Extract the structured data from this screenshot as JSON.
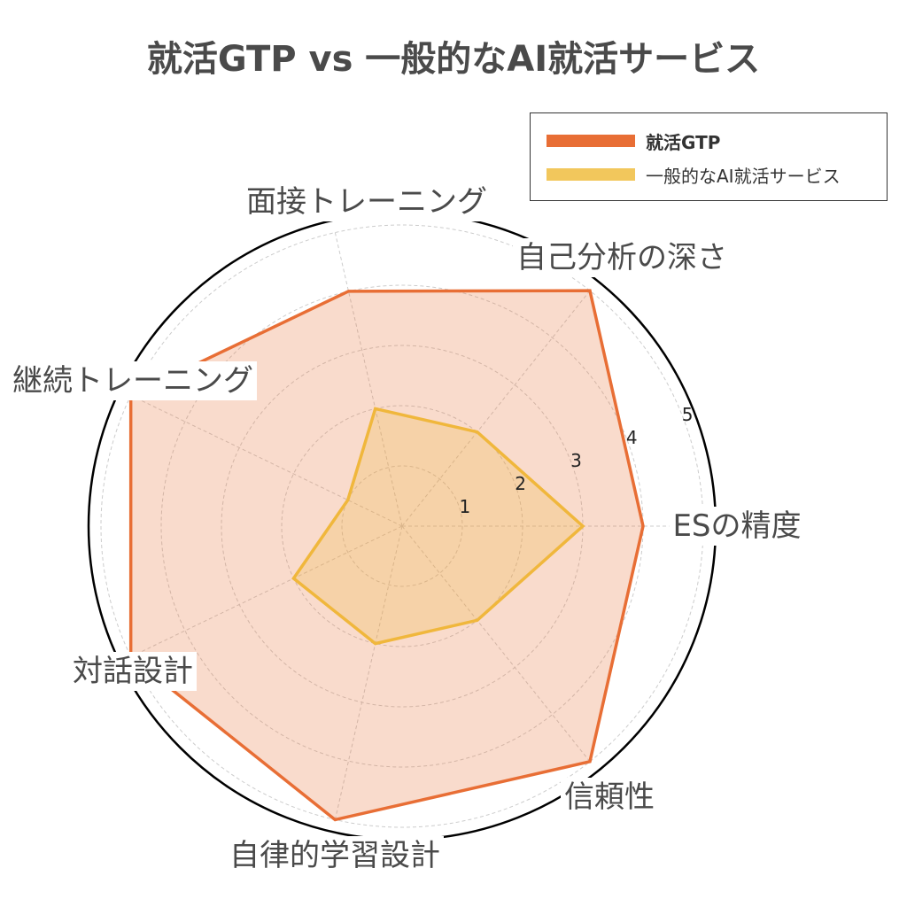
{
  "title": "就活GTP vs 一般的なAI就活サービス",
  "legend": {
    "position": "top-right",
    "items": [
      {
        "label": "就活GTP",
        "color": "#e86e35",
        "bold": true
      },
      {
        "label": "一般的なAI就活サービス",
        "color": "#f2c75c",
        "bold": false
      }
    ]
  },
  "chart_data": {
    "type": "radar",
    "categories": [
      "ESの精度",
      "自己分析の深さ",
      "面接トレーニング",
      "継続トレーニング",
      "対話設計",
      "自律的学習設計",
      "信頼性"
    ],
    "series": [
      {
        "name": "就活GTP",
        "values": [
          4,
          5,
          4,
          5,
          5,
          5,
          5
        ],
        "line_color": "#e86e35",
        "fill_color": "#e86e35"
      },
      {
        "name": "一般的なAI就活サービス",
        "values": [
          3,
          2,
          2,
          1,
          2,
          2,
          2
        ],
        "line_color": "#f0b73c",
        "fill_color": "#f0b73c"
      }
    ],
    "r_ticks": [
      1,
      2,
      3,
      4,
      5
    ],
    "r_tick_labels": [
      "1",
      "2",
      "3",
      "4",
      "5"
    ],
    "rlim": [
      0,
      5
    ],
    "grid": true
  }
}
